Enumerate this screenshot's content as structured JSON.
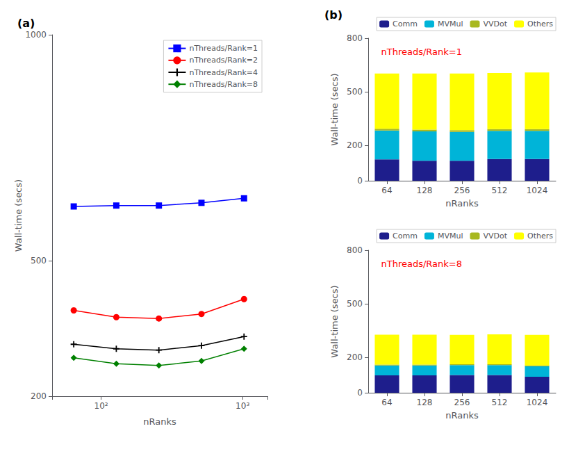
{
  "chart_data": [
    {
      "type": "line",
      "title": "(a)",
      "x": [
        64,
        128,
        256,
        512,
        1024
      ],
      "xlabel": "nRanks",
      "ylabel": "Wall-time (secs)",
      "log": "x",
      "xlim": [
        45,
        1500
      ],
      "xticks": [
        {
          "value": 100,
          "label": "10²"
        },
        {
          "value": 1000,
          "label": "10³"
        }
      ],
      "ylim": [
        200,
        1000
      ],
      "yticks": [
        200,
        500,
        1000
      ],
      "grid": false,
      "legend": "upper right",
      "series": [
        {
          "name": "nThreads/Rank=1",
          "color": "blue",
          "marker": "square",
          "values": [
            620,
            622,
            622,
            628,
            638
          ]
        },
        {
          "name": "nThreads/Rank=2",
          "color": "red",
          "marker": "circle",
          "values": [
            390,
            375,
            372,
            382,
            415
          ]
        },
        {
          "name": "nThreads/Rank=4",
          "color": "black",
          "marker": "plus",
          "values": [
            315,
            305,
            302,
            312,
            332
          ]
        },
        {
          "name": "nThreads/Rank=8",
          "color": "green",
          "marker": "diamond",
          "values": [
            285,
            272,
            268,
            278,
            305
          ]
        }
      ]
    },
    {
      "type": "bar",
      "title": "(b)",
      "stacked": true,
      "annotations": [
        {
          "text": "nThreads/Rank=1",
          "color": "red"
        }
      ],
      "categories": [
        "64",
        "128",
        "256",
        "512",
        "1024"
      ],
      "xlabel": "nRanks",
      "ylabel": "Wall-time (secs)",
      "ylim": [
        0,
        800
      ],
      "yticks": [
        0,
        200,
        500,
        800
      ],
      "grid": false,
      "legend": "upper right",
      "series": [
        {
          "name": "Comm",
          "color": "#1e1e8c",
          "values": [
            120,
            112,
            112,
            122,
            122
          ]
        },
        {
          "name": "MVMul",
          "color": "#00b4d8",
          "values": [
            162,
            165,
            162,
            158,
            158
          ]
        },
        {
          "name": "VVDot",
          "color": "#a8b820",
          "values": [
            10,
            10,
            10,
            10,
            10
          ]
        },
        {
          "name": "Others",
          "color": "#ffff00",
          "values": [
            310,
            315,
            318,
            315,
            318
          ]
        }
      ]
    },
    {
      "type": "bar",
      "stacked": true,
      "annotations": [
        {
          "text": "nThreads/Rank=8",
          "color": "red"
        }
      ],
      "categories": [
        "64",
        "128",
        "256",
        "512",
        "1024"
      ],
      "xlabel": "nRanks",
      "ylabel": "Wall-time (secs)",
      "ylim": [
        0,
        800
      ],
      "yticks": [
        0,
        200,
        500,
        800
      ],
      "grid": false,
      "legend": "upper right",
      "series": [
        {
          "name": "Comm",
          "color": "#1e1e8c",
          "values": [
            98,
            98,
            100,
            100,
            90
          ]
        },
        {
          "name": "MVMul",
          "color": "#00b4d8",
          "values": [
            55,
            55,
            55,
            55,
            58
          ]
        },
        {
          "name": "VVDot",
          "color": "#a8b820",
          "values": [
            5,
            5,
            5,
            5,
            5
          ]
        },
        {
          "name": "Others",
          "color": "#ffff00",
          "values": [
            168,
            168,
            165,
            168,
            172
          ]
        }
      ]
    }
  ]
}
